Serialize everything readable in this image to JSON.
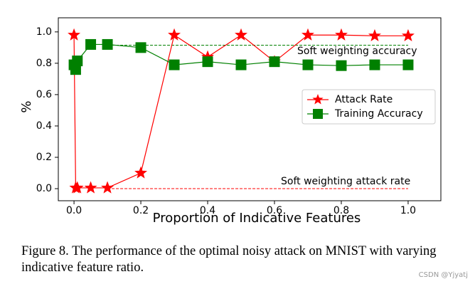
{
  "chart_data": {
    "type": "line",
    "x": [
      0,
      0.005,
      0.01,
      0.05,
      0.1,
      0.2,
      0.3,
      0.4,
      0.5,
      0.6,
      0.7,
      0.8,
      0.9,
      1.0
    ],
    "series": [
      {
        "name": "Attack Rate",
        "color": "#ff0000",
        "marker": "star",
        "values": [
          0.98,
          0.005,
          0.005,
          0.005,
          0.005,
          0.1,
          0.98,
          0.84,
          0.98,
          0.81,
          0.98,
          0.98,
          0.975,
          0.975
        ]
      },
      {
        "name": "Training Accuracy",
        "color": "#008000",
        "marker": "square",
        "values": [
          0.79,
          0.76,
          0.815,
          0.92,
          0.92,
          0.9,
          0.79,
          0.81,
          0.79,
          0.81,
          0.79,
          0.785,
          0.79,
          0.79
        ]
      }
    ],
    "reference_lines": [
      {
        "label": "Soft weighting accuracy",
        "value": 0.915,
        "color": "#008000",
        "x_range": [
          0.1,
          1.0
        ]
      },
      {
        "label": "Soft weighting attack rate",
        "value": 0.0,
        "color": "#ff0000",
        "x_range": [
          0.1,
          1.0
        ]
      }
    ],
    "x_label": "Proportion of Indicative Features",
    "y_label": "%",
    "xlim": [
      -0.047,
      1.098
    ],
    "ylim": [
      -0.077,
      1.09
    ],
    "xticks": [
      {
        "value": 0,
        "label": "0.0"
      },
      0.2,
      0.4,
      0.6,
      0.8,
      {
        "value": 1,
        "label": "1.0"
      }
    ],
    "yticks": [
      {
        "value": 0,
        "label": "0.0"
      },
      0.2,
      0.4,
      0.6,
      0.8,
      {
        "value": 1,
        "label": "1.0"
      }
    ],
    "legend": "center right"
  },
  "caption": "Figure 8. The performance of the optimal noisy attack on MNIST with varying indicative feature ratio.",
  "watermark": "CSDN @Yjyatj"
}
